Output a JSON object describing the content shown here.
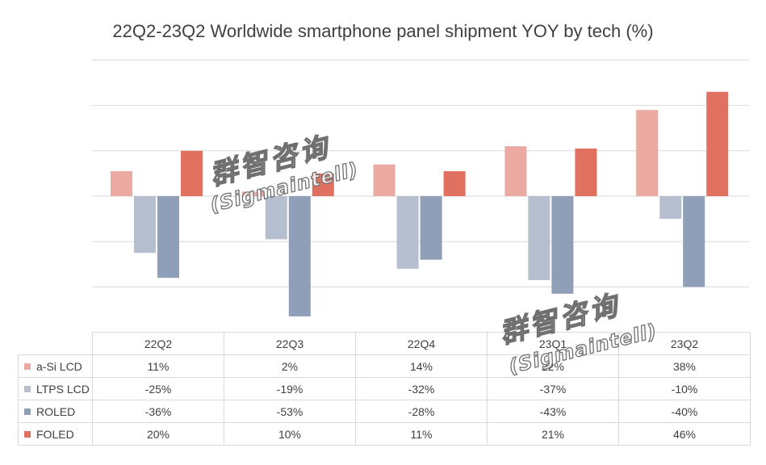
{
  "chart_data": {
    "type": "bar",
    "title": "22Q2-23Q2 Worldwide smartphone panel shipment YOY by tech (%)",
    "categories": [
      "22Q2",
      "22Q3",
      "22Q4",
      "23Q1",
      "23Q2"
    ],
    "ylim": [
      -60,
      60
    ],
    "gridlines": [
      -40,
      -20,
      0,
      20,
      40,
      60
    ],
    "series": [
      {
        "name": "a-Si LCD",
        "color": "#EAA9A1",
        "values": [
          11,
          2,
          14,
          22,
          38
        ],
        "labels": [
          "11%",
          "2%",
          "14%",
          "22%",
          "38%"
        ]
      },
      {
        "name": "LTPS LCD",
        "color": "#B5BFD0",
        "values": [
          -25,
          -19,
          -32,
          -37,
          -10
        ],
        "labels": [
          "-25%",
          "-19%",
          "-32%",
          "-37%",
          "-10%"
        ]
      },
      {
        "name": "ROLED",
        "color": "#8F9FB7",
        "values": [
          -36,
          -53,
          -28,
          -43,
          -40
        ],
        "labels": [
          "-36%",
          "-53%",
          "-28%",
          "-43%",
          "-40%"
        ]
      },
      {
        "name": "FOLED",
        "color": "#E07161",
        "values": [
          20,
          10,
          11,
          21,
          46
        ],
        "labels": [
          "20%",
          "10%",
          "11%",
          "21%",
          "46%"
        ]
      }
    ]
  },
  "watermark": {
    "cn": "群智咨询",
    "en": "(Sigmaintell)"
  }
}
